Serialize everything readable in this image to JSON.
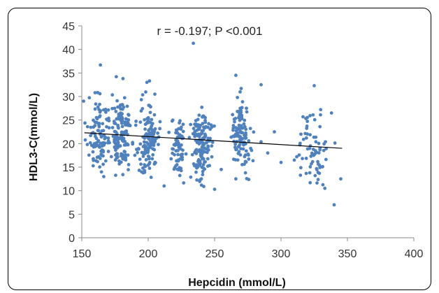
{
  "chart_data": {
    "type": "scatter",
    "title": "",
    "xlabel": "Hepcidin (mmol/L)",
    "ylabel": "HDL3-C(mmol/L)",
    "xlim": [
      150,
      400
    ],
    "ylim": [
      0,
      45
    ],
    "xticks": [
      150,
      200,
      250,
      300,
      350,
      400
    ],
    "yticks": [
      0,
      5,
      10,
      15,
      20,
      25,
      30,
      35,
      40,
      45
    ],
    "annotation": "r = -0.197; P <0.001",
    "grid": false,
    "legend": "none",
    "point_color": "#4F81BD",
    "trendline_color": "#000000",
    "trendline": {
      "x": [
        152,
        346
      ],
      "y": [
        22.3,
        19.0
      ]
    },
    "clusters": [
      {
        "x_center": 162,
        "x_spread": 8,
        "y_center": 22,
        "y_spread": 3.6,
        "count": 110
      },
      {
        "x_center": 180,
        "x_spread": 7,
        "y_center": 22,
        "y_spread": 3.6,
        "count": 150
      },
      {
        "x_center": 200,
        "x_spread": 7,
        "y_center": 21,
        "y_spread": 3.8,
        "count": 130
      },
      {
        "x_center": 222,
        "x_spread": 5,
        "y_center": 19,
        "y_spread": 3.2,
        "count": 70
      },
      {
        "x_center": 240,
        "x_spread": 7,
        "y_center": 20,
        "y_spread": 3.6,
        "count": 140
      },
      {
        "x_center": 270,
        "x_spread": 7,
        "y_center": 22,
        "y_spread": 3.6,
        "count": 110
      },
      {
        "x_center": 325,
        "x_spread": 10,
        "y_center": 19,
        "y_spread": 4.0,
        "count": 70
      }
    ],
    "points": [
      {
        "x": 164,
        "y": 36.7
      },
      {
        "x": 176,
        "y": 34.2
      },
      {
        "x": 181,
        "y": 33.8
      },
      {
        "x": 199,
        "y": 33.0
      },
      {
        "x": 201,
        "y": 33.3
      },
      {
        "x": 234,
        "y": 41.3
      },
      {
        "x": 266,
        "y": 34.5
      },
      {
        "x": 285,
        "y": 32.5
      },
      {
        "x": 325,
        "y": 32.3
      },
      {
        "x": 340,
        "y": 7.0
      },
      {
        "x": 212,
        "y": 11.0
      },
      {
        "x": 250,
        "y": 10.3
      },
      {
        "x": 240,
        "y": 12.5
      },
      {
        "x": 266,
        "y": 12.5
      },
      {
        "x": 333,
        "y": 10.5
      },
      {
        "x": 345,
        "y": 12.5
      },
      {
        "x": 290,
        "y": 18.0
      },
      {
        "x": 300,
        "y": 16.0
      },
      {
        "x": 310,
        "y": 16.5
      },
      {
        "x": 295,
        "y": 22.5
      },
      {
        "x": 205,
        "y": 30.5
      },
      {
        "x": 270,
        "y": 31.7
      },
      {
        "x": 255,
        "y": 14.5
      },
      {
        "x": 315,
        "y": 22.0
      },
      {
        "x": 338,
        "y": 26.5
      },
      {
        "x": 160,
        "y": 30.8
      },
      {
        "x": 195,
        "y": 14.0
      }
    ]
  }
}
